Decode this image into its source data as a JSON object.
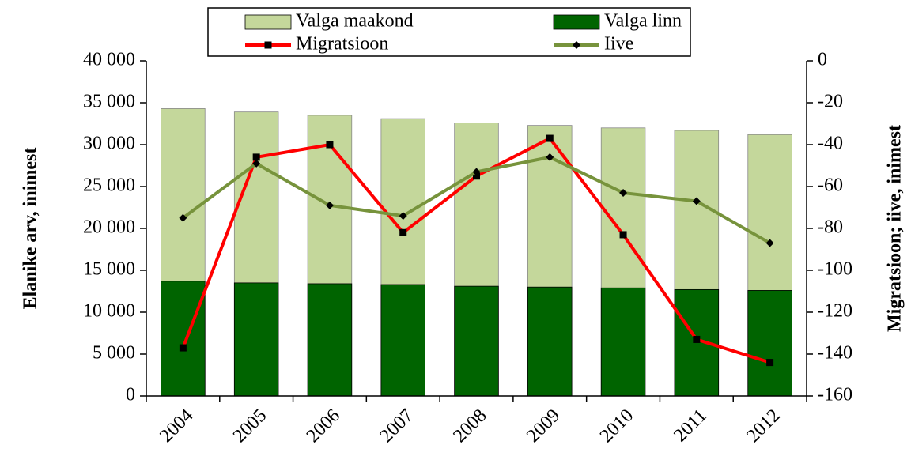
{
  "chart_data": {
    "type": "bar-line",
    "ylabel": "Elanike arv, inimest",
    "y2label": "Migratsioon; iive, inimest",
    "categories": [
      "2004",
      "2005",
      "2006",
      "2007",
      "2008",
      "2009",
      "2010",
      "2011",
      "2012"
    ],
    "series": [
      {
        "name": "Valga maakond",
        "color": "#c4d79b",
        "kind": "bar",
        "values": [
          34300,
          33900,
          33500,
          33100,
          32600,
          32300,
          32000,
          31700,
          31200
        ]
      },
      {
        "name": "Valga linn",
        "color": "#006400",
        "kind": "bar",
        "values": [
          13700,
          13500,
          13400,
          13300,
          13100,
          13000,
          12900,
          12700,
          12600
        ]
      },
      {
        "name": "Migratsioon",
        "color": "#ff0000",
        "kind": "line",
        "marker": "square",
        "axis": "y2",
        "values": [
          -137,
          -46,
          -40,
          -82,
          -55,
          -37,
          -83,
          -133,
          -144
        ]
      },
      {
        "name": "Iive",
        "color": "#77933c",
        "kind": "line",
        "marker": "diamond",
        "axis": "y2",
        "values": [
          -75,
          -49,
          -69,
          -74,
          -53,
          -46,
          -63,
          -67,
          -87
        ]
      }
    ],
    "ylim": [
      0,
      40000
    ],
    "yticks": [
      0,
      {
        "value": 5000,
        "label": "5 000"
      },
      {
        "value": 10000,
        "label": "10 000"
      },
      {
        "value": 15000,
        "label": "15 000"
      },
      {
        "value": 20000,
        "label": "20 000"
      },
      {
        "value": 25000,
        "label": "25 000"
      },
      {
        "value": 30000,
        "label": "30 000"
      },
      {
        "value": 35000,
        "label": "35 000"
      },
      {
        "value": 40000,
        "label": "40 000"
      }
    ],
    "y2lim": [
      -160,
      0
    ],
    "y2ticks": [
      0,
      -20,
      -40,
      -60,
      -80,
      -100,
      -120,
      -140,
      -160
    ],
    "legend": "top"
  }
}
